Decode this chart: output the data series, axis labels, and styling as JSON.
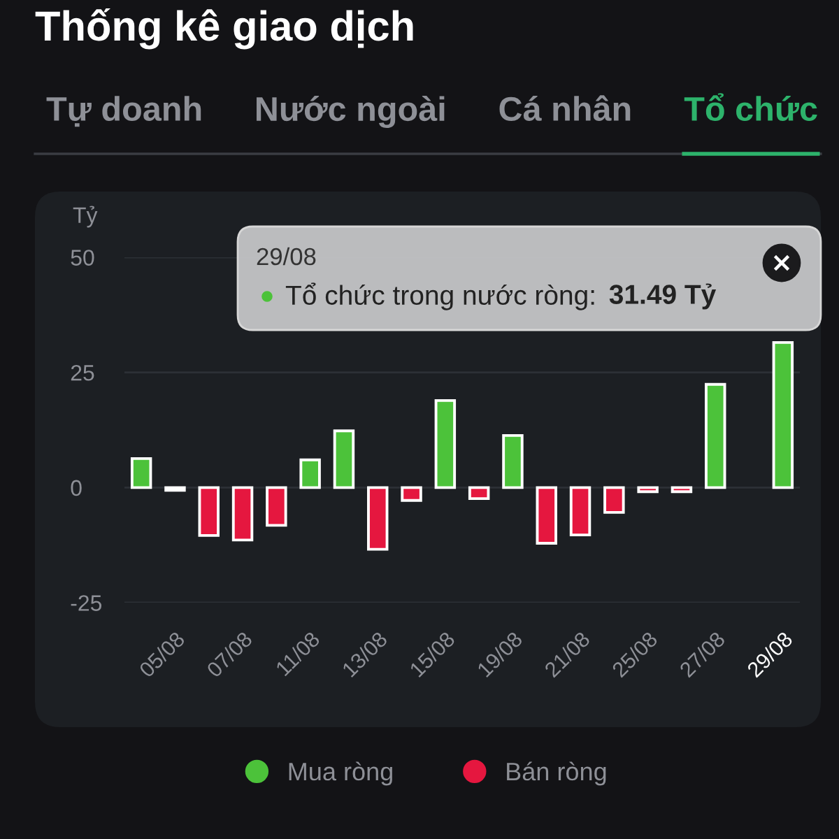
{
  "chart_data": {
    "type": "bar",
    "title": "Thống kê giao dịch",
    "subtitle": "Tổ chức",
    "annotations": [
      "Tự doanh",
      "Nước ngoài",
      "Cá nhân",
      "29/08\nTổ chức trong nước ròng: 31.49 Tỷ"
    ],
    "ylabel": "Tỷ",
    "categories": [
      null,
      "05/08",
      null,
      "07/08",
      null,
      "11/08",
      null,
      "13/08",
      null,
      "15/08",
      null,
      "19/08",
      null,
      "21/08",
      null,
      "25/08",
      null,
      "27/08",
      null,
      "29/08"
    ],
    "series": [
      {
        "name": "Mua ròng",
        "color": "#4cc23a",
        "values": [
          6.3,
          null,
          null,
          null,
          null,
          6.0,
          12.3,
          null,
          null,
          18.9,
          null,
          11.3,
          null,
          null,
          null,
          null,
          null,
          22.4,
          null,
          31.49
        ]
      },
      {
        "name": "Bán ròng",
        "color": "#e5173f",
        "values": [
          null,
          -0.6,
          -10.4,
          -11.4,
          -8.2,
          null,
          null,
          -13.4,
          -2.8,
          null,
          -2.4,
          null,
          -12.1,
          -10.3,
          -5.4,
          -0.9,
          -0.9,
          null,
          null,
          null
        ]
      }
    ],
    "ylim": [
      -25,
      50
    ],
    "yticks": [
      -25,
      0,
      25,
      50
    ],
    "grid": "y",
    "legend": "bottom"
  }
}
